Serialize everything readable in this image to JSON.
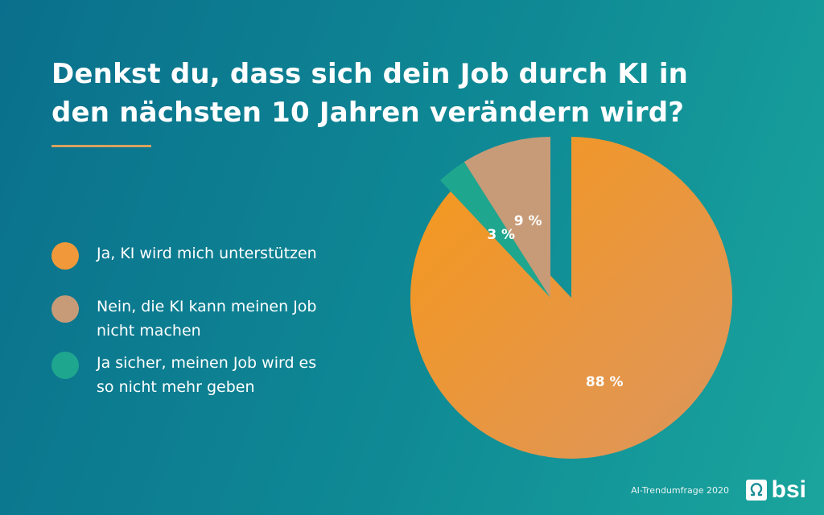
{
  "title": "Denkst du, dass sich dein Job durch KI in den nächsten 10 Jahren verändern wird?",
  "source": "AI-Trendumfrage 2020",
  "logo": {
    "text": "bsi",
    "icon": "omega-icon"
  },
  "colors": {
    "accent_rule": "#d9a25e"
  },
  "chart_data": {
    "type": "pie",
    "title": "Denkst du, dass sich dein Job durch KI in den nächsten 10 Jahren verändern wird?",
    "legend_position": "left",
    "start": "12 o'clock, clockwise",
    "slices": [
      {
        "label": "Ja, KI wird mich unterstützen",
        "value": 88,
        "value_label": "88 %",
        "color": "#f1993a",
        "exploded": false
      },
      {
        "label": "Ja sicher, meinen Job wird es so nicht mehr geben",
        "value": 3,
        "value_label": "3 %",
        "color": "#1fa68e",
        "exploded": true
      },
      {
        "label": "Nein, die KI kann meinen Job nicht machen",
        "value": 9,
        "value_label": "9 %",
        "color": "#c79b78",
        "exploded": true
      }
    ],
    "legend_order": [
      0,
      2,
      1
    ]
  }
}
